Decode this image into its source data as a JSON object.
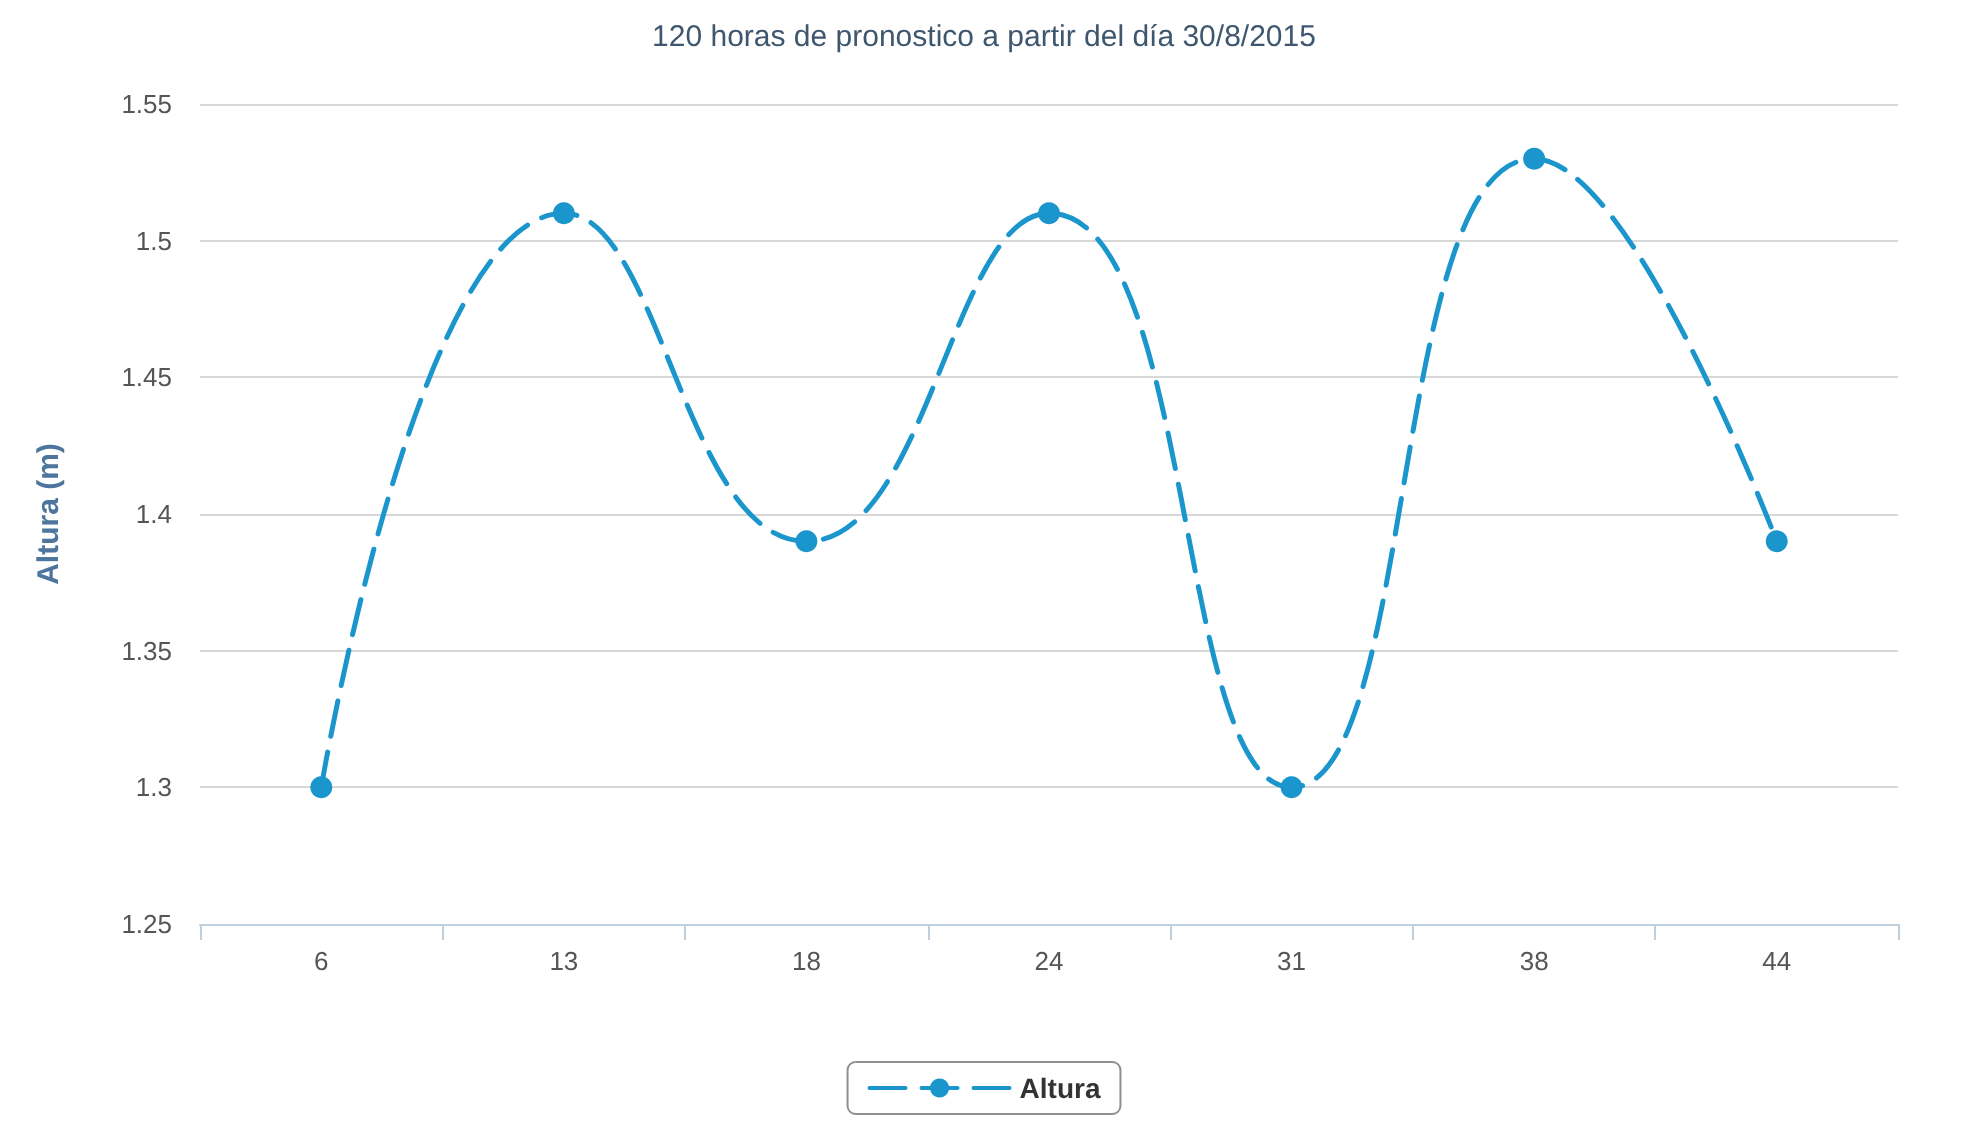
{
  "chart_data": {
    "type": "line",
    "title": "120 horas de pronostico a partir del día 30/8/2015",
    "ylabel": "Altura (m)",
    "categories": [
      "6",
      "13",
      "18",
      "24",
      "31",
      "38",
      "44"
    ],
    "series": [
      {
        "name": "Altura",
        "color": "#1b96cc",
        "values": [
          1.3,
          1.51,
          1.39,
          1.51,
          1.3,
          1.53,
          1.39
        ]
      }
    ],
    "ylim": [
      1.25,
      1.55
    ],
    "yticks": [
      1.25,
      1.3,
      1.35,
      1.4,
      1.45,
      1.5,
      1.55
    ],
    "grid": "y",
    "legend": "bottom",
    "marker": "circle",
    "line_style": "dashed"
  }
}
